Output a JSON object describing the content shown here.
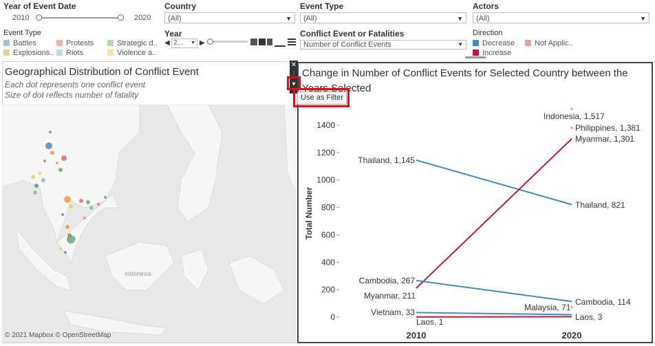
{
  "filters": {
    "year_of_event_date": {
      "label": "Year of Event Date",
      "min_label": "2010",
      "max_label": "2020"
    },
    "country": {
      "label": "Country",
      "value": "(All)"
    },
    "event_type": {
      "label": "Event Type",
      "value": "(All)"
    },
    "actors": {
      "label": "Actors",
      "value": "(All)"
    },
    "year": {
      "label": "Year",
      "value": "2..."
    },
    "conflict_measure": {
      "label": "Conflict Event or Fatalities",
      "value": "Number of Conflict Events"
    }
  },
  "event_type_legend": {
    "title": "Event Type",
    "items": [
      {
        "label": "Battles",
        "color": "#a8c0dd"
      },
      {
        "label": "Protests",
        "color": "#f2b3b0"
      },
      {
        "label": "Strategic d..",
        "color": "#b9dba8"
      },
      {
        "label": "Explosions..",
        "color": "#f7c995"
      },
      {
        "label": "Riots",
        "color": "#b7dde3"
      },
      {
        "label": "Violence a..",
        "color": "#f7e49e"
      }
    ]
  },
  "direction_legend": {
    "title": "Direction",
    "items": [
      {
        "label": "Decrease",
        "color": "#3a8dbf"
      },
      {
        "label": "Not Applic..",
        "color": "#d9a89c"
      },
      {
        "label": "Increase",
        "color": "#c8123e"
      }
    ]
  },
  "map_panel": {
    "title": "Geographical Distribution of Conflict Event",
    "subtitle1": "Each dot represents one conflict event",
    "subtitle2": "Size of dot reflects number of fatality",
    "place_label": "Indonesia",
    "attribution": "© 2021 Mapbox © OpenStreetMap"
  },
  "chart_panel": {
    "title": "Change in Number of Conflict Events for Selected Country between the Years Selected",
    "use_as_filter_label": "Use as Filter"
  },
  "chart_data": {
    "type": "line",
    "title": "Change in Number of Conflict Events for Selected Country between the Years Selected",
    "xlabel": "",
    "ylabel": "Total Number",
    "x": [
      "2010",
      "2020"
    ],
    "ylim": [
      0,
      1500
    ],
    "yticks": [
      0,
      200,
      400,
      600,
      800,
      1000,
      1200,
      1400
    ],
    "grid": false,
    "series": [
      {
        "name": "Thailand",
        "values": [
          1145,
          821
        ],
        "direction": "Decrease",
        "label_start": "Thailand, 1,145",
        "label_end": "Thailand, 821"
      },
      {
        "name": "Myanmar",
        "values": [
          211,
          1301
        ],
        "direction": "Increase",
        "label_start": "Myanmar, 211",
        "label_end": "Myanmar, 1,301"
      },
      {
        "name": "Cambodia",
        "values": [
          267,
          114
        ],
        "direction": "Decrease",
        "label_start": "Cambodia, 267",
        "label_end": "Cambodia, 114"
      },
      {
        "name": "Vietnam",
        "values": [
          33,
          18
        ],
        "direction": "Decrease",
        "label_start": "Vietnam, 33",
        "label_end": ""
      },
      {
        "name": "Laos",
        "values": [
          1,
          3
        ],
        "direction": "Increase",
        "label_start": "Laos, 1",
        "label_end": "Laos, 3"
      },
      {
        "name": "Indonesia",
        "values": [
          null,
          1517
        ],
        "direction": "Not Applicable",
        "label_start": "",
        "label_end": "Indonesia, 1,517"
      },
      {
        "name": "Philippines",
        "values": [
          null,
          1381
        ],
        "direction": "Not Applicable",
        "label_start": "",
        "label_end": "Philippines, 1,381"
      },
      {
        "name": "Malaysia",
        "values": [
          null,
          71
        ],
        "direction": "Not Applicable",
        "label_start": "",
        "label_end": "Malaysia, 71"
      }
    ]
  }
}
